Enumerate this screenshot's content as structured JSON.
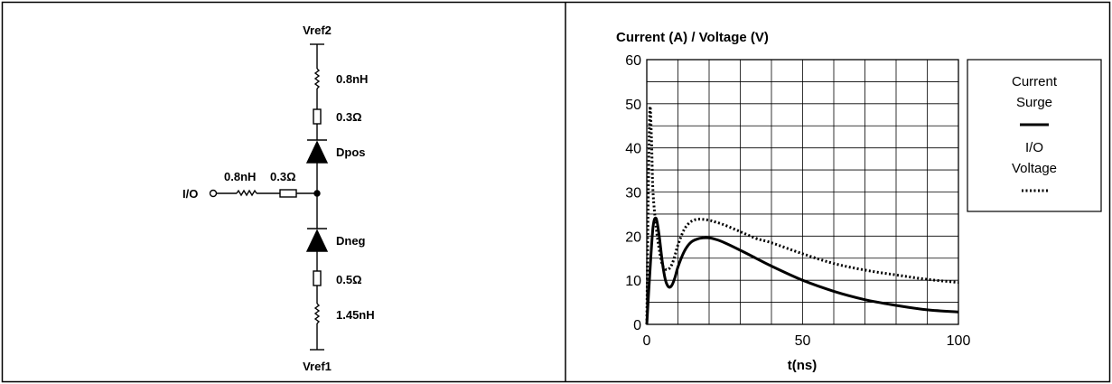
{
  "circuit": {
    "top_node": "Vref2",
    "bottom_node": "Vref1",
    "io_node": "I/O",
    "upper_inductor": "0.8nH",
    "upper_resistor": "0.3Ω",
    "upper_diode": "Dpos",
    "io_inductor": "0.8nH",
    "io_resistor": "0.3Ω",
    "lower_diode": "Dneg",
    "lower_resistor": "0.5Ω",
    "lower_inductor": "1.45nH"
  },
  "chart_data": {
    "type": "line",
    "title": "Current (A) / Voltage (V)",
    "xlabel": "t(ns)",
    "ylabel": "",
    "xlim": [
      0,
      100
    ],
    "ylim": [
      0,
      60
    ],
    "x_ticks": [
      "0",
      "50",
      "100"
    ],
    "y_ticks": [
      "0",
      "10",
      "20",
      "30",
      "40",
      "50",
      "60"
    ],
    "grid": true,
    "legend_position": "right",
    "legend": {
      "current_label_1": "Current",
      "current_label_2": "Surge",
      "voltage_label_1": "I/O",
      "voltage_label_2": "Voltage"
    },
    "series": [
      {
        "name": "Current Surge",
        "style": "solid",
        "x": [
          0,
          1,
          2,
          3,
          4,
          5,
          6,
          7,
          8,
          9,
          10,
          12,
          14,
          16,
          18,
          20,
          22,
          25,
          30,
          35,
          40,
          50,
          60,
          70,
          80,
          90,
          100
        ],
        "y": [
          0,
          12,
          22,
          24,
          20,
          14,
          10,
          8.5,
          8.8,
          10.5,
          13,
          16.5,
          18.5,
          19.3,
          19.6,
          19.6,
          19.3,
          18.5,
          16.8,
          15,
          13.2,
          10,
          7.5,
          5.6,
          4.3,
          3.3,
          2.8
        ]
      },
      {
        "name": "I/O Voltage",
        "style": "dotted",
        "x": [
          0,
          0.5,
          1,
          1.5,
          2,
          3,
          4,
          5,
          6,
          7,
          8,
          9,
          10,
          12,
          14,
          16,
          18,
          20,
          22,
          25,
          30,
          35,
          40,
          50,
          60,
          70,
          80,
          90,
          100
        ],
        "y": [
          0,
          30,
          49,
          42,
          30,
          22,
          17,
          13.5,
          12.5,
          12.5,
          13.5,
          15.5,
          18,
          21.5,
          23.2,
          23.8,
          23.8,
          23.6,
          23.2,
          22.5,
          21,
          19.5,
          18.5,
          16,
          13.8,
          12.3,
          11.2,
          10.2,
          9.5
        ]
      }
    ]
  }
}
